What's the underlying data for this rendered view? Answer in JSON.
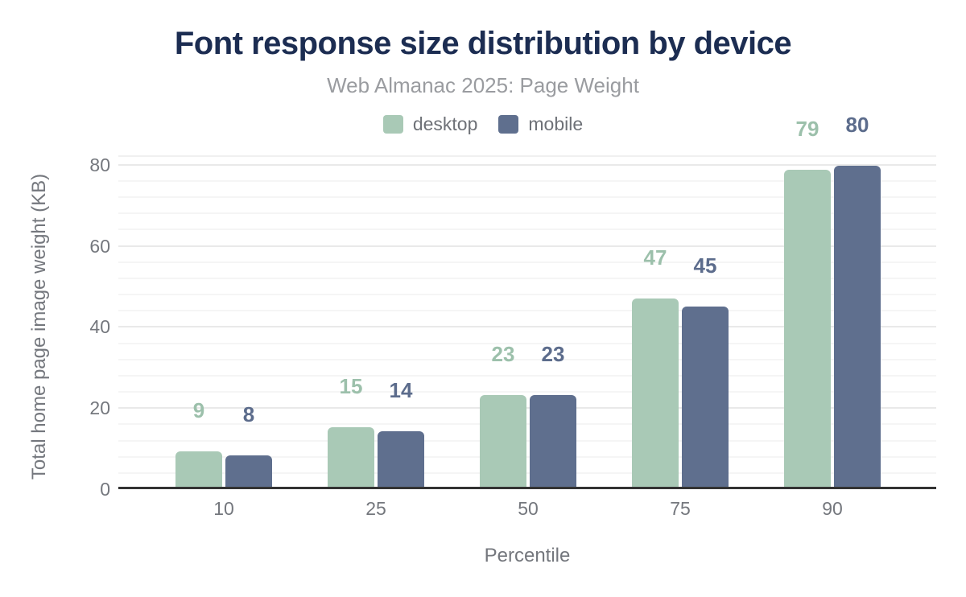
{
  "chart_data": {
    "type": "bar",
    "title": "Font response size distribution by device",
    "subtitle": "Web Almanac 2025: Page Weight",
    "categories": [
      "10",
      "25",
      "50",
      "75",
      "90"
    ],
    "series": [
      {
        "name": "desktop",
        "color": "#a9c9b6",
        "label_color": "#9cc0ab",
        "values": [
          9,
          15,
          23,
          47,
          79
        ]
      },
      {
        "name": "mobile",
        "color": "#5f6f8e",
        "label_color": "#5c6c8c",
        "values": [
          8,
          14,
          23,
          45,
          80
        ]
      }
    ],
    "xlabel": "Percentile",
    "ylabel": "Total home page image weight (KB)",
    "yticks": [
      0,
      20,
      40,
      60,
      80
    ],
    "ylim": [
      0,
      80
    ],
    "data_labels_shown": true,
    "legend_position": "top",
    "grid": {
      "orientation": "horizontal",
      "major_step": 20,
      "minor_step": 4,
      "major_color": "#e9e9e9",
      "minor_color": "#f5f5f5",
      "plot_top_color": "#f0f0f0"
    },
    "colors": {
      "title": "#1c2d52",
      "subtitle": "#9a9ca0",
      "tick_labels": "#74777d",
      "axis_titles": "#74777d",
      "legend_text": "#6e7177",
      "axis_line": "#333333",
      "background": "#ffffff"
    }
  }
}
